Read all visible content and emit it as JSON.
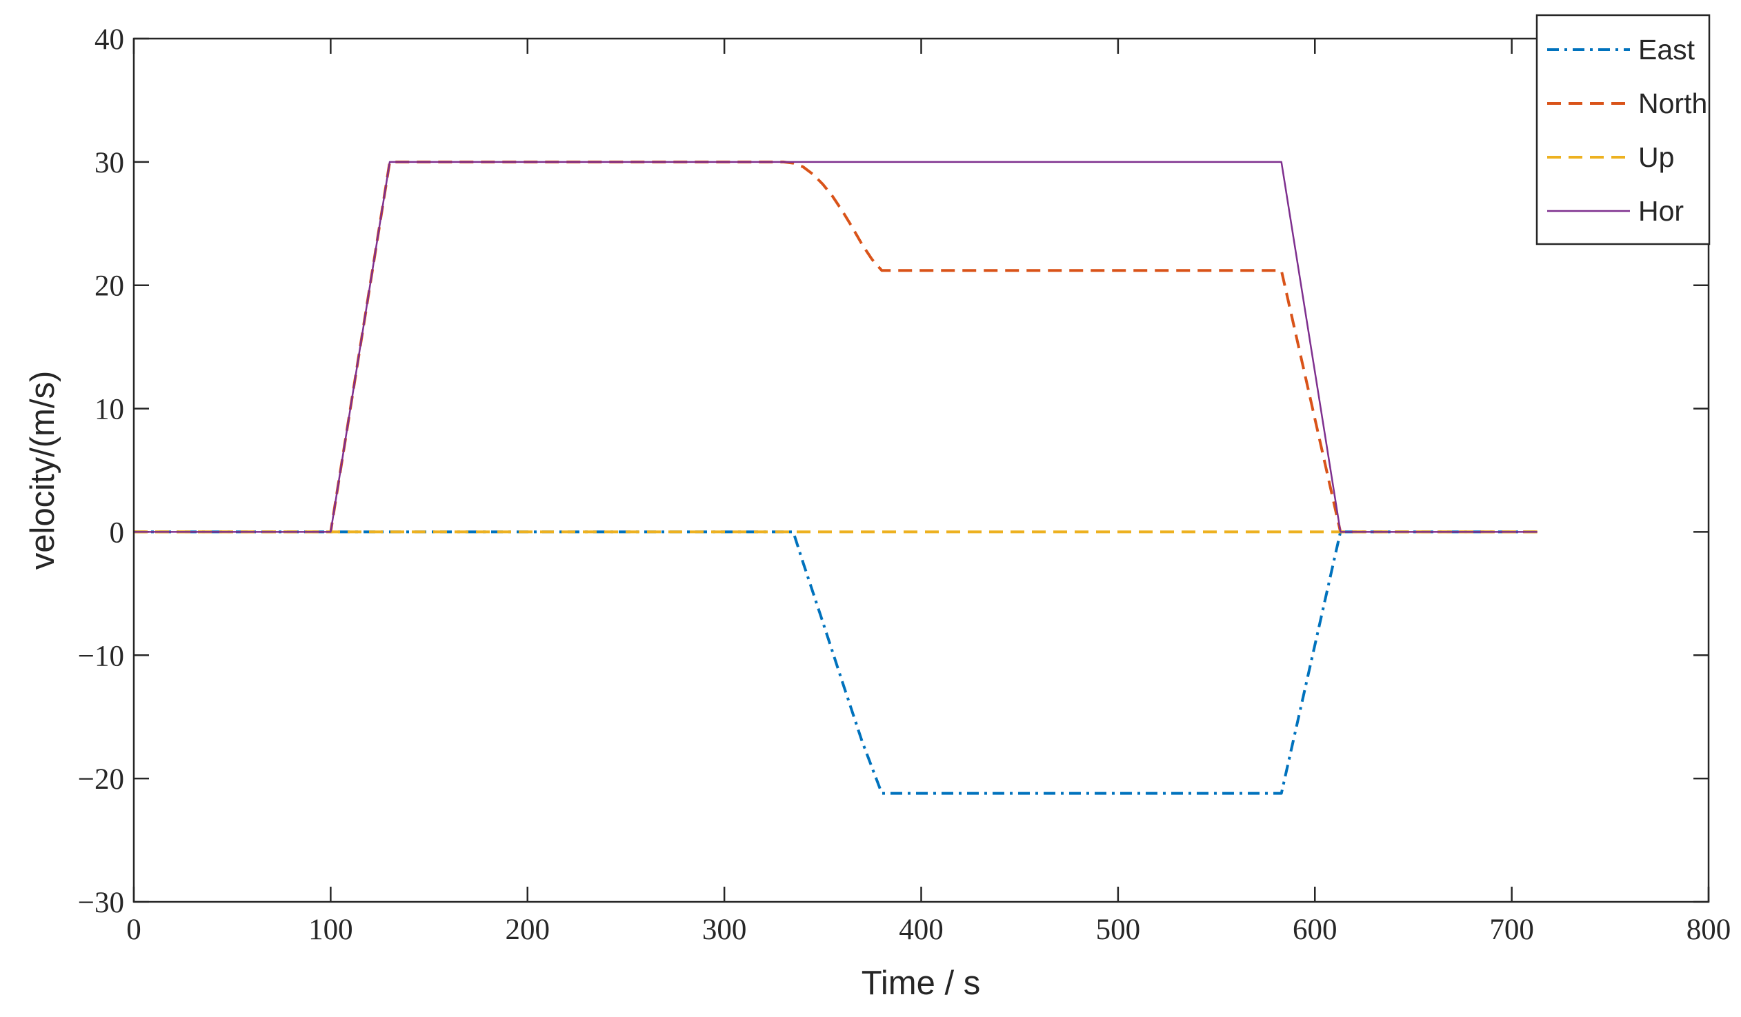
{
  "chart_data": {
    "type": "line",
    "title": "",
    "xlabel": "Time / s",
    "ylabel": "velocity/(m/s)",
    "xlim": [
      0,
      800
    ],
    "ylim": [
      -30,
      40
    ],
    "xticks": [
      0,
      100,
      200,
      300,
      400,
      500,
      600,
      700,
      800
    ],
    "yticks": [
      -30,
      -20,
      -10,
      0,
      10,
      20,
      30,
      40
    ],
    "xtick_labels": [
      "0",
      "100",
      "200",
      "300",
      "400",
      "500",
      "600",
      "700",
      "800"
    ],
    "ytick_labels": [
      "−30",
      "−20",
      "−10",
      "0",
      "10",
      "20",
      "30",
      "40"
    ],
    "grid": false,
    "legend_position": "top-right",
    "series": [
      {
        "name": "East",
        "color": "#0072BD",
        "line_style": "dash-dot",
        "x": [
          0,
          100,
          130,
          335,
          340,
          350,
          360,
          370,
          380,
          583,
          613,
          713
        ],
        "y": [
          0,
          0,
          0,
          0,
          -2.5,
          -7.3,
          -12.2,
          -17.0,
          -21.2,
          -21.2,
          0,
          0
        ]
      },
      {
        "name": "North",
        "color": "#D95319",
        "line_style": "dashed",
        "x": [
          0,
          100,
          130,
          330,
          335,
          340,
          345,
          350,
          355,
          360,
          365,
          370,
          375,
          380,
          583,
          613,
          713
        ],
        "y": [
          0,
          0,
          30,
          30,
          29.9,
          29.6,
          29.0,
          28.2,
          27.2,
          26.0,
          24.7,
          23.3,
          22.1,
          21.2,
          21.2,
          0,
          0
        ]
      },
      {
        "name": "Up",
        "color": "#EDB120",
        "line_style": "dashed",
        "x": [
          0,
          713
        ],
        "y": [
          0,
          0
        ]
      },
      {
        "name": "Hor",
        "color": "#7E2F8E",
        "line_style": "solid",
        "x": [
          0,
          100,
          130,
          583,
          613,
          713
        ],
        "y": [
          0,
          0,
          30,
          30,
          0,
          0
        ]
      }
    ]
  }
}
